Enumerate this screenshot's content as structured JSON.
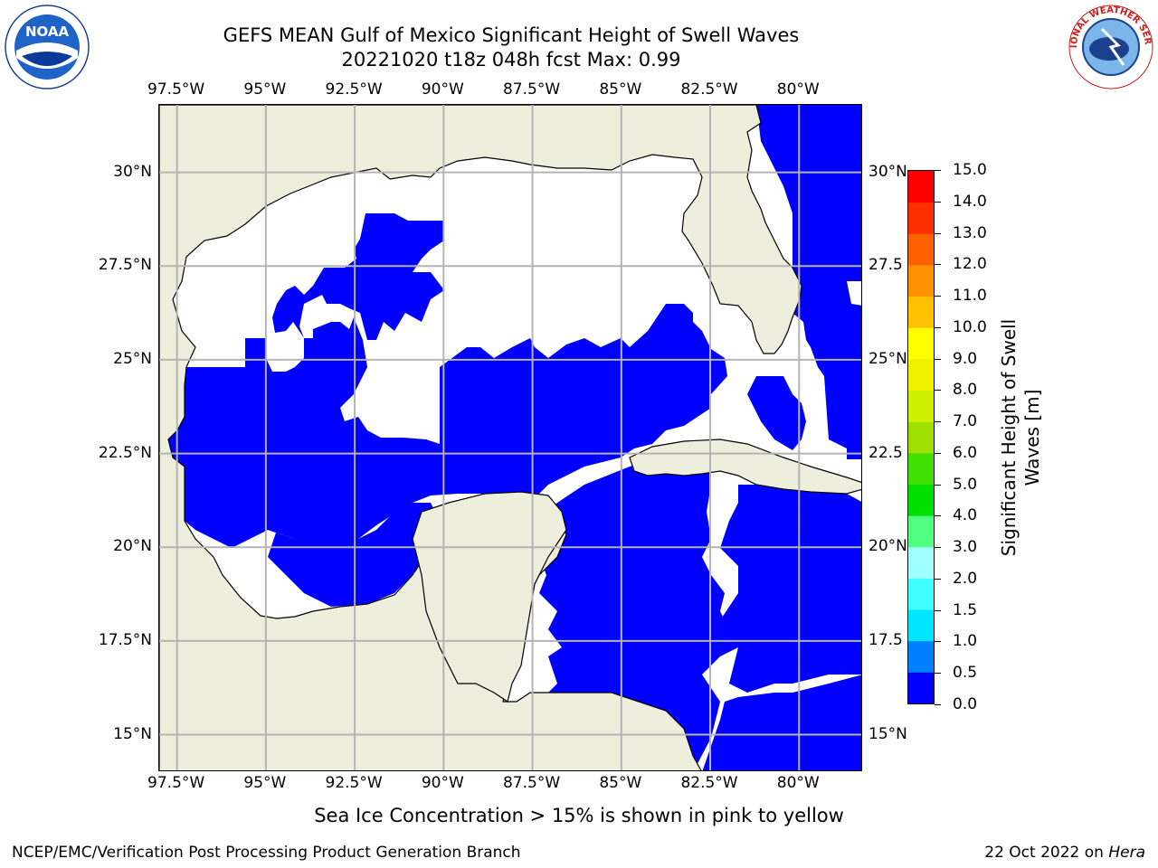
{
  "title": {
    "line1": "GEFS MEAN Gulf of Mexico Significant Height of Swell Waves",
    "line2": "20221020 t18z 048h fcst   Max: 0.99"
  },
  "map": {
    "lon_ticks": [
      "97.5°W",
      "95°W",
      "92.5°W",
      "90°W",
      "87.5°W",
      "85°W",
      "82.5°W",
      "80°W"
    ],
    "lat_ticks": [
      "30°N",
      "27.5°N",
      "25°N",
      "22.5°N",
      "20°N",
      "17.5°N",
      "15°N"
    ],
    "lat_ticks_right": [
      "30°N",
      "27.5",
      "25°N",
      "22.5",
      "20°N",
      "17.5",
      "15°N"
    ],
    "lon_range": [
      -98.0,
      -78.2
    ],
    "lat_range": [
      14.0,
      31.8
    ],
    "colors": {
      "land": "#eeeedc",
      "low_swell": "#0000ff",
      "mid_swell": "#0080ff",
      "no_data": "#ffffff",
      "grid": "#b4b4b4"
    }
  },
  "colorbar": {
    "label": "Significant Height of Swell Waves [m]",
    "label_line1": "Significant Height of Swell",
    "label_line2": "Waves [m]",
    "levels": [
      "0.0",
      "0.5",
      "1.0",
      "1.5",
      "2.0",
      "3.0",
      "4.0",
      "5.0",
      "6.0",
      "7.0",
      "8.0",
      "9.0",
      "10.0",
      "11.0",
      "12.0",
      "13.0",
      "14.0",
      "15.0"
    ],
    "colors": [
      "#0000ff",
      "#0080ff",
      "#00e5ff",
      "#40ffff",
      "#a0ffff",
      "#50ff80",
      "#00e000",
      "#40e000",
      "#a0e000",
      "#d0f000",
      "#f0f000",
      "#ffff00",
      "#ffc000",
      "#ff9000",
      "#ff6000",
      "#ff3000",
      "#ff0000"
    ]
  },
  "footnote": "Sea Ice Concentration > 15% is shown in pink to yellow",
  "credit": "NCEP/EMC/Verification Post Processing Product Generation Branch",
  "date": {
    "text": "22 Oct 2022 on ",
    "host": "Hera"
  },
  "logos": {
    "left": "NOAA",
    "right": "NATIONAL WEATHER SERVICE"
  }
}
